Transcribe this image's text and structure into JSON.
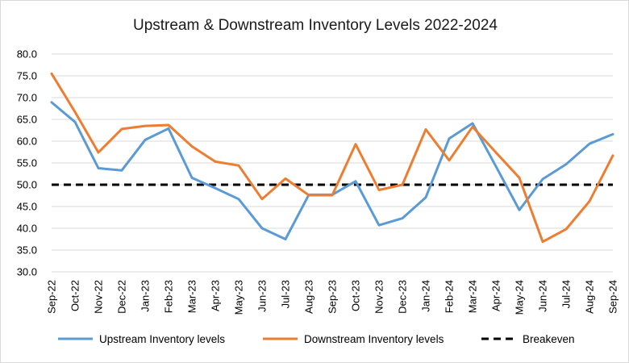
{
  "chart_data": {
    "type": "line",
    "title": "Upstream & Downstream Inventory Levels 2022-2024",
    "xlabel": "",
    "ylabel": "",
    "ylim": [
      30.0,
      80.0
    ],
    "ytick_step": 5,
    "grid": true,
    "legend_position": "bottom",
    "categories": [
      "Sep-22",
      "Oct-22",
      "Nov-22",
      "Dec-22",
      "Jan-23",
      "Feb-23",
      "Mar-23",
      "Apr-23",
      "May-23",
      "Jun-23",
      "Jul-23",
      "Aug-23",
      "Sep-23",
      "Oct-23",
      "Nov-23",
      "Dec-23",
      "Jan-24",
      "Feb-24",
      "Mar-24",
      "Apr-24",
      "May-24",
      "Jun-24",
      "Jul-24",
      "Aug-24",
      "Sep-24"
    ],
    "series": [
      {
        "name": "Upstream Inventory levels",
        "color": "#5b9bd5",
        "style": "solid",
        "values": [
          68.9,
          64.4,
          53.8,
          53.3,
          60.3,
          62.9,
          51.6,
          49.2,
          46.7,
          40.0,
          37.5,
          47.7,
          47.7,
          50.8,
          40.7,
          42.3,
          47.1,
          60.6,
          64.1,
          54.2,
          44.2,
          51.3,
          54.7,
          59.4,
          61.6
        ]
      },
      {
        "name": "Downstream Inventory levels",
        "color": "#ed7d31",
        "style": "solid",
        "values": [
          75.5,
          66.7,
          57.4,
          62.8,
          63.5,
          63.7,
          58.8,
          55.3,
          54.4,
          46.7,
          51.4,
          47.6,
          47.6,
          59.3,
          48.8,
          50.0,
          62.7,
          55.6,
          63.3,
          57.4,
          51.6,
          36.9,
          39.8,
          46.2,
          56.7
        ]
      },
      {
        "name": "Breakeven",
        "color": "#000000",
        "style": "dashed",
        "values": [
          50.0,
          50.0,
          50.0,
          50.0,
          50.0,
          50.0,
          50.0,
          50.0,
          50.0,
          50.0,
          50.0,
          50.0,
          50.0,
          50.0,
          50.0,
          50.0,
          50.0,
          50.0,
          50.0,
          50.0,
          50.0,
          50.0,
          50.0,
          50.0,
          50.0
        ]
      }
    ]
  }
}
